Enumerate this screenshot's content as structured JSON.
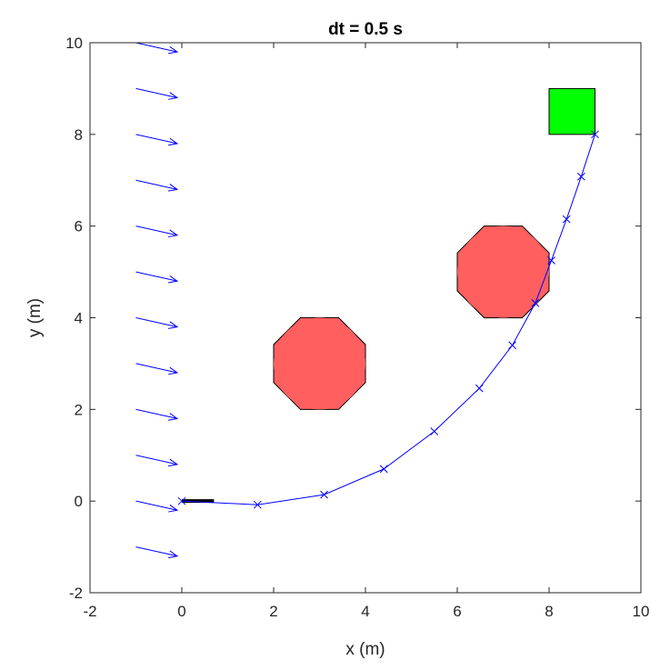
{
  "chart_data": {
    "type": "line",
    "title": "dt = 0.5 s",
    "xlabel": "x (m)",
    "ylabel": "y (m)",
    "xlim": [
      -2,
      10
    ],
    "ylim": [
      -2,
      10
    ],
    "xticks": [
      -2,
      0,
      2,
      4,
      6,
      8,
      10
    ],
    "yticks": [
      -2,
      0,
      2,
      4,
      6,
      8,
      10
    ],
    "grid": false,
    "trajectory": {
      "color": "#0000ff",
      "marker": "x",
      "points": [
        [
          0,
          0
        ],
        [
          1.65,
          -0.08
        ],
        [
          3.1,
          0.14
        ],
        [
          4.4,
          0.7
        ],
        [
          5.5,
          1.52
        ],
        [
          6.48,
          2.46
        ],
        [
          7.2,
          3.4
        ],
        [
          7.7,
          4.32
        ],
        [
          8.05,
          5.25
        ],
        [
          8.38,
          6.15
        ],
        [
          8.7,
          7.08
        ],
        [
          9.0,
          8.0
        ]
      ]
    },
    "wind_field": {
      "color": "#0000ff",
      "origins_x": -1,
      "origins_y": [
        10,
        9,
        8,
        7,
        6,
        5,
        4,
        3,
        2,
        1,
        0,
        -1
      ],
      "dx": 0.9,
      "dy": -0.2
    },
    "obstacles": [
      {
        "center": [
          3,
          3
        ],
        "radius": 1,
        "fill": "#ff5f5f"
      },
      {
        "center": [
          7,
          5
        ],
        "radius": 1,
        "fill": "#ff5f5f"
      }
    ],
    "goal": {
      "x": [
        8,
        9
      ],
      "y": [
        8,
        9
      ],
      "fill": "#00ff00"
    },
    "start_heading": {
      "from": [
        0,
        0
      ],
      "to": [
        0.7,
        0
      ],
      "color": "#000000"
    }
  }
}
